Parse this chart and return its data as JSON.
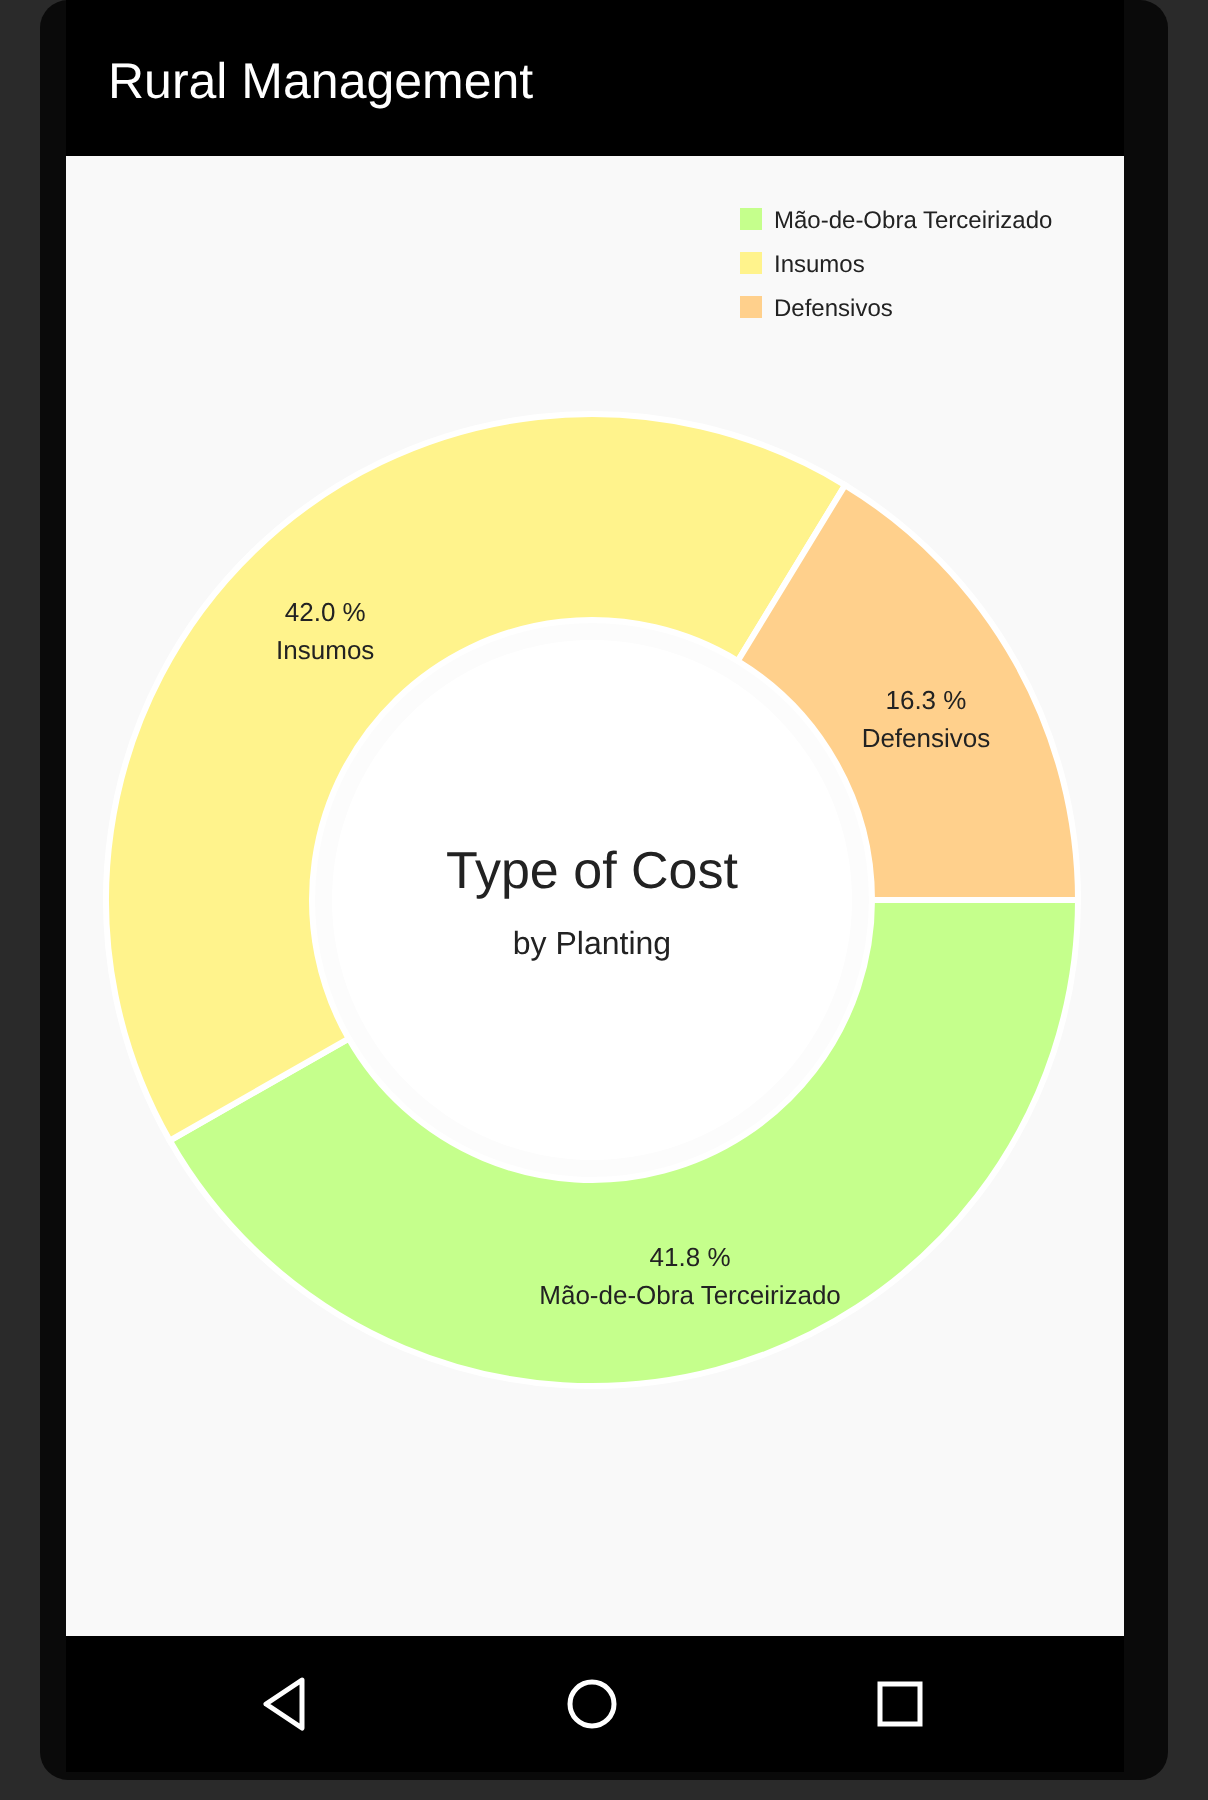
{
  "chart_data": {
    "type": "donut",
    "title": "Rural Management",
    "annotations": [
      "Type of Cost",
      "by Planting"
    ],
    "categories": [
      "Mão-de-Obra Terceirizado",
      "Insumos",
      "Defensivos"
    ],
    "values": [
      41.8,
      42.0,
      16.3
    ],
    "value_labels": [
      "41.8 %",
      "42.0 %",
      "16.3 %"
    ],
    "colors": [
      "#c5ff8c",
      "#fff38c",
      "#ffd08c"
    ],
    "legend": "top right"
  }
}
